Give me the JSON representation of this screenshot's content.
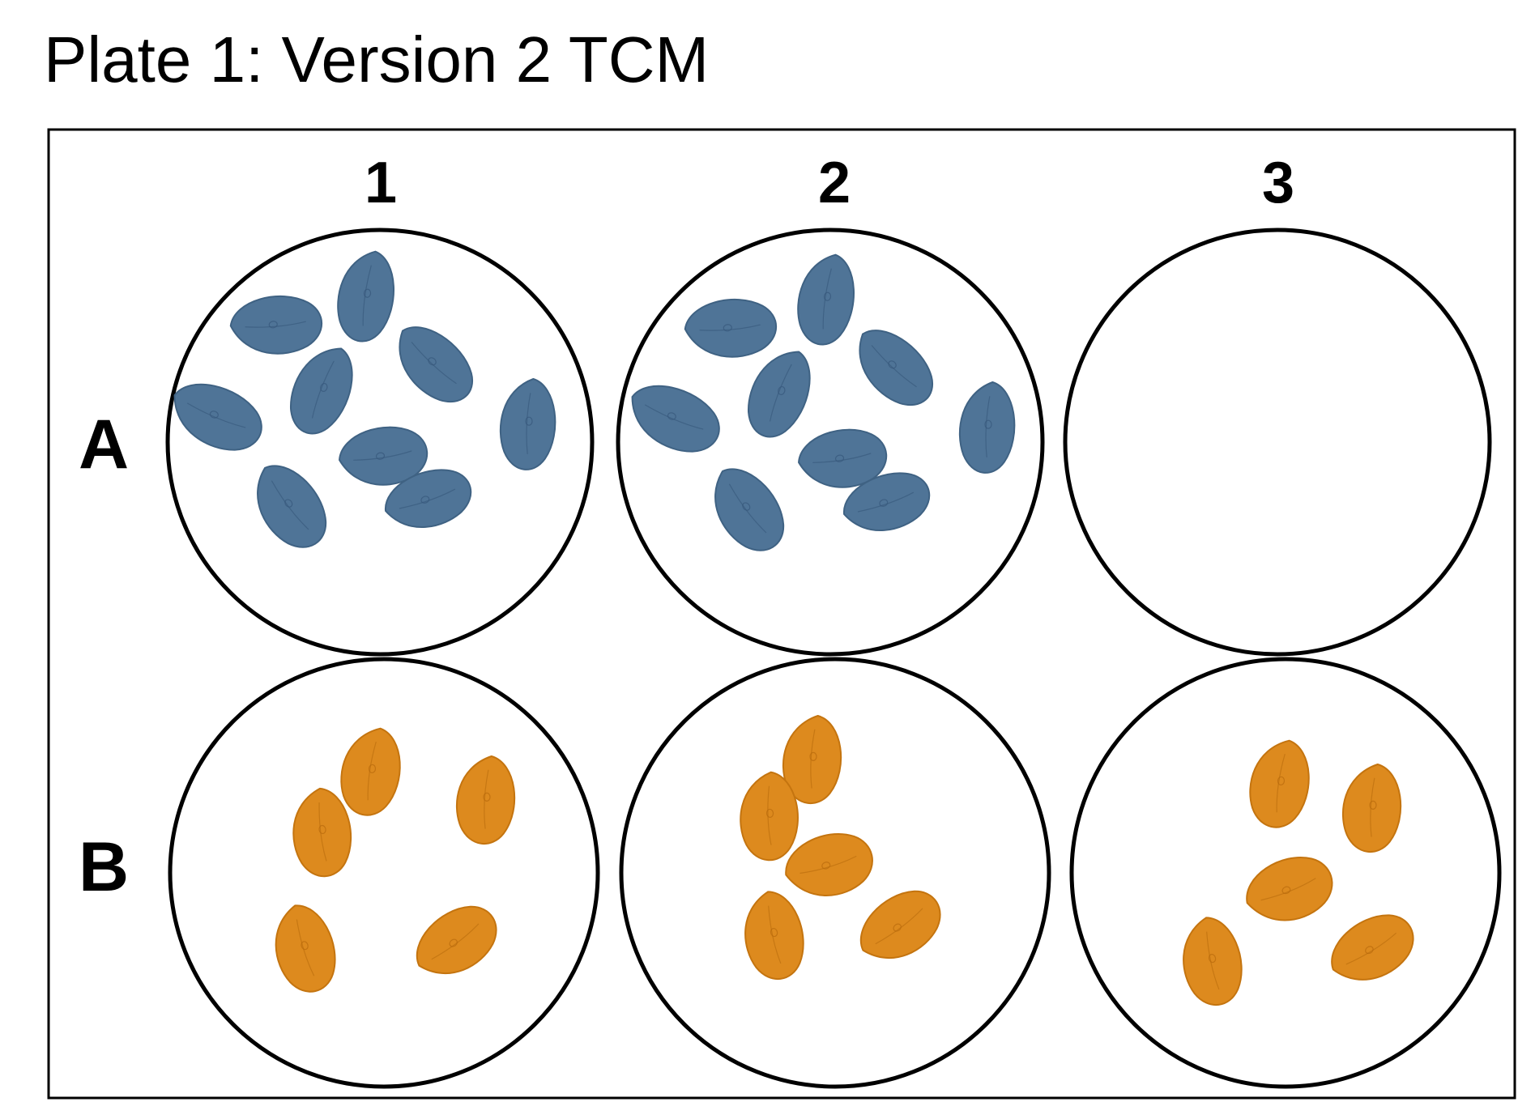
{
  "title": "Plate 1: Version 2 TCM",
  "columns": [
    "1",
    "2",
    "3"
  ],
  "rows": [
    "A",
    "B"
  ],
  "colors": {
    "blue_seed": "#4f7497",
    "blue_seed_edge": "#3f6283",
    "blue_seed_vein": "#36577a",
    "orange_seed": "#dd8a1e",
    "orange_seed_edge": "#c4740f",
    "orange_seed_vein": "#b86a0c",
    "outline": "#000000"
  },
  "wells": [
    {
      "row": "A",
      "column": "1",
      "seed_color": "blue",
      "seed_count": 9
    },
    {
      "row": "A",
      "column": "2",
      "seed_color": "blue",
      "seed_count": 9
    },
    {
      "row": "A",
      "column": "3",
      "seed_color": "none",
      "seed_count": 0
    },
    {
      "row": "B",
      "column": "1",
      "seed_color": "orange",
      "seed_count": 5
    },
    {
      "row": "B",
      "column": "2",
      "seed_color": "orange",
      "seed_count": 5
    },
    {
      "row": "B",
      "column": "3",
      "seed_color": "orange",
      "seed_count": 5
    }
  ]
}
